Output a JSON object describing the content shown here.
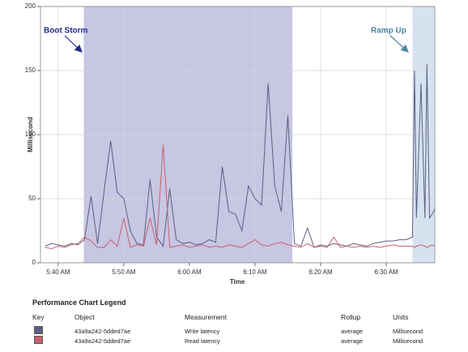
{
  "chart_data": {
    "type": "line",
    "y_label": "Millisecond",
    "x_label": "Time",
    "x": [
      338,
      339,
      340,
      341,
      342,
      343,
      344,
      345,
      346,
      347,
      348,
      349,
      350,
      351,
      352,
      353,
      354,
      355,
      356,
      357,
      358,
      359,
      360,
      361,
      362,
      363,
      364,
      365,
      366,
      367,
      368,
      369,
      370,
      371,
      372,
      373,
      374,
      375,
      376,
      377,
      378,
      379,
      380,
      381,
      382,
      383,
      384,
      385,
      386,
      387,
      388,
      389,
      390,
      391,
      392,
      393,
      394.0,
      394.3,
      394.6,
      395.3,
      395.9,
      396.2,
      396.6,
      397.0,
      397.4
    ],
    "series": [
      {
        "name": "Write latency",
        "color": "#5b6082",
        "values": [
          13,
          15,
          14,
          13,
          15,
          14,
          18,
          52,
          15,
          56,
          95,
          55,
          50,
          25,
          15,
          14,
          65,
          20,
          13,
          58,
          18,
          15,
          16,
          14,
          15,
          18,
          16,
          75,
          40,
          38,
          25,
          60,
          50,
          45,
          140,
          60,
          40,
          115,
          15,
          13,
          27,
          12,
          14,
          13,
          15,
          14,
          13,
          15,
          14,
          13,
          15,
          16,
          17,
          17,
          18,
          18,
          20,
          150,
          35,
          140,
          35,
          155,
          35,
          38,
          42
        ]
      },
      {
        "name": "Read latency",
        "color": "#c9606e",
        "values": [
          12,
          11,
          13,
          12,
          14,
          15,
          20,
          17,
          12,
          12,
          18,
          13,
          35,
          12,
          14,
          13,
          35,
          14,
          92,
          12,
          13,
          14,
          12,
          13,
          14,
          12,
          13,
          12,
          14,
          13,
          12,
          15,
          18,
          14,
          13,
          15,
          16,
          14,
          13,
          12,
          15,
          12,
          13,
          12,
          20,
          12,
          13,
          12,
          13,
          12,
          13,
          12,
          13,
          14,
          13,
          13,
          13,
          12,
          13,
          14,
          13,
          12,
          13,
          14,
          13
        ]
      }
    ],
    "xlim": [
      337.3,
      397.4
    ],
    "ylim": [
      0,
      200
    ],
    "xticks": [
      {
        "value": 340,
        "label": "5:40 AM"
      },
      {
        "value": 350,
        "label": "5:50 AM"
      },
      {
        "value": 360,
        "label": "6:00 AM"
      },
      {
        "value": 370,
        "label": "6:10 AM"
      },
      {
        "value": 380,
        "label": "6:20 AM"
      },
      {
        "value": 390,
        "label": "6:30 AM"
      }
    ],
    "yticks": [
      0,
      50,
      100,
      150,
      200
    ],
    "grid": true,
    "shaded_regions": [
      {
        "label": "Boot Storm",
        "x": [
          343.9,
          375.7
        ],
        "color": "#b4b3da"
      },
      {
        "label": "Ramp Up",
        "x": [
          394.0,
          397.4
        ],
        "color": "#c8d8ea"
      }
    ]
  },
  "legend_table": {
    "title": "Performance Chart Legend",
    "headers": [
      "Key",
      "Object",
      "Measurement",
      "Rollup",
      "Units"
    ],
    "rows": [
      [
        "43a9a242-5dded7ae",
        "Write latency",
        "average",
        "Millisecond"
      ],
      [
        "43a9a242-5dded7ae",
        "Read latency",
        "average",
        "Millisecond"
      ]
    ]
  }
}
